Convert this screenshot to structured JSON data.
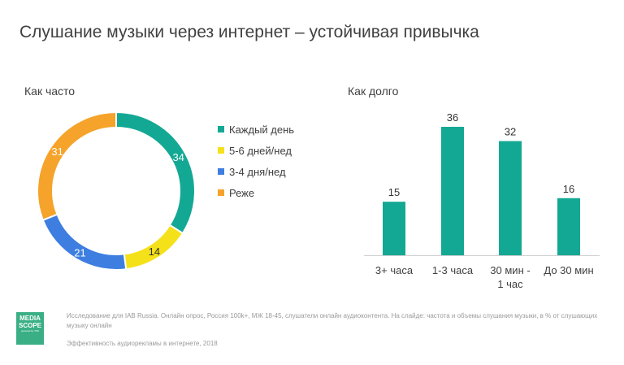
{
  "title": "Слушание музыки через интернет – устойчивая привычка",
  "colors": {
    "daily": "#13a894",
    "five_six": "#f5e11a",
    "three_four": "#3d7ee0",
    "rarely": "#f5a32a",
    "bars": "#13a894",
    "logo": "#3aaf86"
  },
  "chart_data": [
    {
      "type": "pie",
      "subtype": "donut",
      "title": "Как часто",
      "categories": [
        "Каждый день",
        "5-6 дней/нед",
        "3-4 дня/нед",
        "Реже"
      ],
      "values": [
        34,
        14,
        21,
        31
      ],
      "data_labels": [
        "34",
        "14",
        "21",
        "31"
      ],
      "legend_position": "right"
    },
    {
      "type": "bar",
      "title": "Как долго",
      "categories": [
        "3+ часа",
        "1-3 часа",
        "30 мин - 1 час",
        "До 30 мин"
      ],
      "category_lines": [
        [
          "3+ часа"
        ],
        [
          "1-3 часа"
        ],
        [
          "30 мин -",
          "1 час"
        ],
        [
          "До 30 мин"
        ]
      ],
      "values": [
        15,
        36,
        32,
        16
      ],
      "data_labels": [
        "15",
        "36",
        "32",
        "16"
      ],
      "ylim": [
        0,
        36
      ],
      "grid": false
    }
  ],
  "footer": {
    "logo_lines": [
      "MEDIA",
      "SCOPE"
    ],
    "logo_tagline": "powered by TNS",
    "note": "Исследование для IAB Russia. Онлайн опрос, Россия 100k+, МЖ 18-45, слушатели онлайн аудиоконтента. На слайде: частота и объемы слушания музыки, в % от слушающих музыку онлайн",
    "source": "Эффективность аудиорекламы в интернете, 2018"
  }
}
